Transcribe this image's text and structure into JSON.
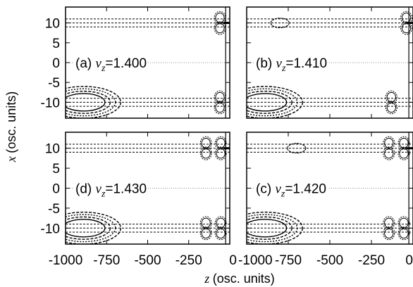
{
  "chart_data": [
    {
      "type": "contour",
      "label_prefix": "(a)",
      "label_var": "v",
      "label_sub": "z",
      "label_value": "=1.400",
      "xlim": [
        -1000,
        0
      ],
      "ylim": [
        -14,
        14
      ],
      "features": [
        {
          "z": -890,
          "x": -10,
          "shape": "nested-ellipses",
          "levels": 4
        },
        {
          "z": -60,
          "x": 10,
          "shape": "double-lobe"
        },
        {
          "z": -60,
          "x": -10,
          "shape": "double-lobe"
        }
      ]
    },
    {
      "type": "contour",
      "label_prefix": "(b)",
      "label_var": "v",
      "label_sub": "z",
      "label_value": "=1.410",
      "xlim": [
        -1000,
        0
      ],
      "ylim": [
        -14,
        14
      ],
      "features": [
        {
          "z": -890,
          "x": -10,
          "shape": "nested-ellipses",
          "levels": 4
        },
        {
          "z": -800,
          "x": 10,
          "shape": "small-ellipse"
        },
        {
          "z": -130,
          "x": -10,
          "shape": "double-lobe"
        },
        {
          "z": -40,
          "x": 10,
          "shape": "double-lobe"
        }
      ]
    },
    {
      "type": "contour",
      "label_prefix": "(d)",
      "label_var": "v",
      "label_sub": "z",
      "label_value": "=1.430",
      "xlim": [
        -1000,
        0
      ],
      "ylim": [
        -14,
        14
      ],
      "features": [
        {
          "z": -890,
          "x": -10,
          "shape": "nested-ellipses",
          "levels": 4
        },
        {
          "z": -100,
          "x": 10,
          "shape": "quad-lobe"
        },
        {
          "z": -100,
          "x": -10,
          "shape": "quad-lobe"
        }
      ]
    },
    {
      "type": "contour",
      "label_prefix": "(c)",
      "label_var": "v",
      "label_sub": "z",
      "label_value": "=1.420",
      "xlim": [
        -1000,
        0
      ],
      "ylim": [
        -14,
        14
      ],
      "features": [
        {
          "z": -890,
          "x": -10,
          "shape": "nested-ellipses",
          "levels": 4
        },
        {
          "z": -700,
          "x": 10,
          "shape": "small-ellipse"
        },
        {
          "z": -100,
          "x": 10,
          "shape": "quad-lobe"
        },
        {
          "z": -100,
          "x": -10,
          "shape": "quad-lobe"
        }
      ]
    }
  ],
  "axes": {
    "xlabel_var": "z",
    "xlabel_rest": "(osc. units)",
    "ylabel_var": "x",
    "ylabel_rest": "(osc. units)",
    "xticks": [
      -1000,
      -750,
      -500,
      -250,
      0
    ],
    "yticks": [
      10,
      5,
      0,
      -5,
      -10
    ],
    "guide_lines_x": [
      11,
      10,
      9,
      -9,
      -10,
      -11
    ]
  }
}
